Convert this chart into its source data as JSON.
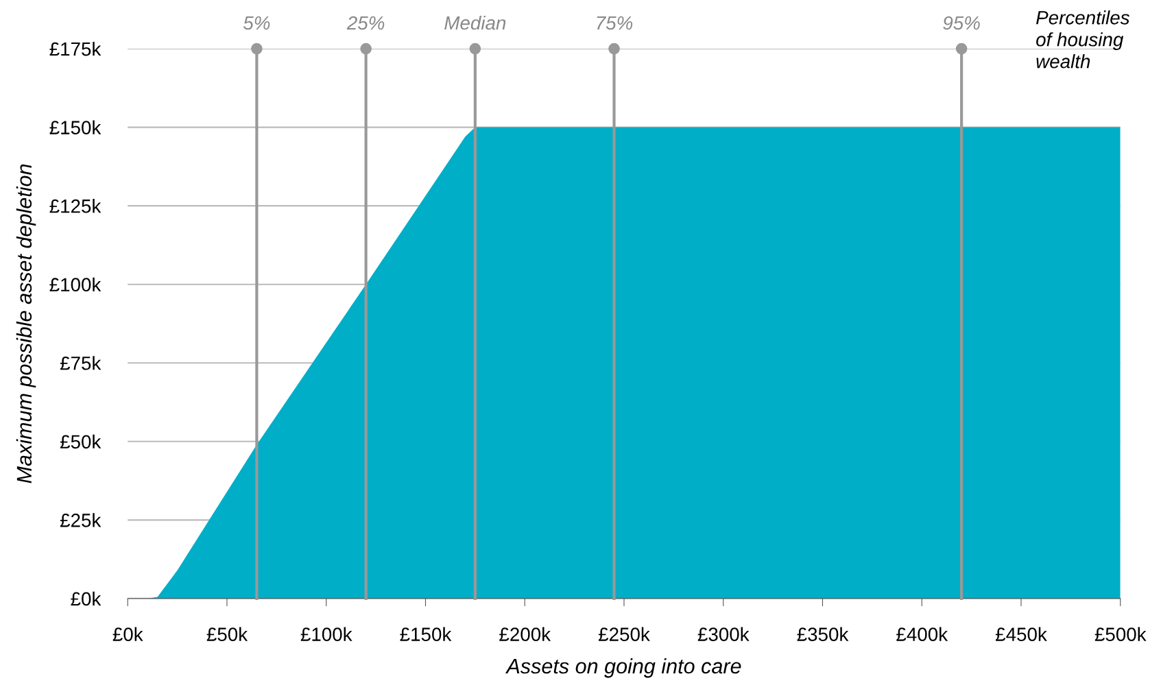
{
  "chart_data": {
    "type": "area",
    "xlabel": "Assets on going into care",
    "ylabel": "Maximum possible asset depletion",
    "x": [
      0,
      10,
      15,
      25,
      65,
      120,
      170,
      175,
      500
    ],
    "series": [
      {
        "color": "#00aec7",
        "values": [
          0,
          0,
          0.5,
          9,
          49,
          100,
          147,
          150,
          150
        ]
      }
    ],
    "xlim": [
      0,
      500
    ],
    "ylim": [
      0,
      175
    ],
    "xticks": [
      {
        "value": 0,
        "label": "£0k"
      },
      {
        "value": 50,
        "label": "£50k"
      },
      {
        "value": 100,
        "label": "£100k"
      },
      {
        "value": 150,
        "label": "£150k"
      },
      {
        "value": 200,
        "label": "£200k"
      },
      {
        "value": 250,
        "label": "£250k"
      },
      {
        "value": 300,
        "label": "£300k"
      },
      {
        "value": 350,
        "label": "£350k"
      },
      {
        "value": 400,
        "label": "£400k"
      },
      {
        "value": 450,
        "label": "£450k"
      },
      {
        "value": 500,
        "label": "£500k"
      }
    ],
    "yticks": [
      {
        "value": 0,
        "label": "£0k"
      },
      {
        "value": 25,
        "label": "£25k"
      },
      {
        "value": 50,
        "label": "£50k"
      },
      {
        "value": 75,
        "label": "£75k"
      },
      {
        "value": 100,
        "label": "£100k"
      },
      {
        "value": 125,
        "label": "£125k"
      },
      {
        "value": 150,
        "label": "£150k"
      },
      {
        "value": 175,
        "label": "£175k"
      }
    ],
    "ref_lines": [
      {
        "axis": "x",
        "value": 65,
        "color": "#999999"
      },
      {
        "axis": "x",
        "value": 120,
        "color": "#999999"
      },
      {
        "axis": "x",
        "value": 175,
        "label": "Median",
        "color": "#999999"
      },
      {
        "axis": "x",
        "value": 245,
        "color": "#999999"
      },
      {
        "axis": "x",
        "value": 420,
        "color": "#999999"
      }
    ],
    "annotations": [
      {
        "text": "5%",
        "x": 65,
        "y": 175
      },
      {
        "text": "25%",
        "x": 120,
        "y": 175
      },
      {
        "text": "75%",
        "x": 245,
        "y": 175
      },
      {
        "text": "95%",
        "x": 420,
        "y": 175
      },
      "Percentiles\nof housing\nwealth"
    ],
    "grid": "y"
  }
}
